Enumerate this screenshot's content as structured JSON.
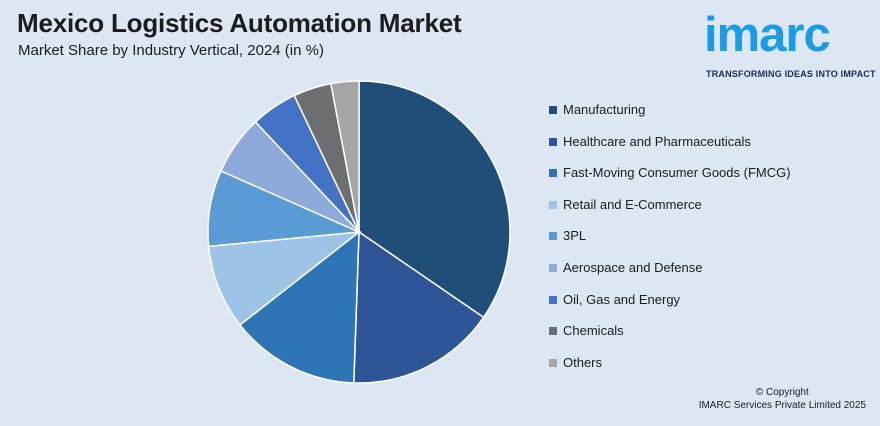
{
  "header": {
    "title": "Mexico Logistics Automation Market",
    "subtitle": "Market Share by Industry Vertical, 2024 (in %)"
  },
  "logo": {
    "word": "imarc",
    "tagline": "TRANSFORMING IDEAS INTO IMPACT",
    "color": "#1a9be8"
  },
  "chart_data": {
    "type": "pie",
    "title": "Mexico Logistics Automation Market",
    "subtitle": "Market Share by Industry Vertical, 2024 (in %)",
    "legend_position": "right",
    "categories": [
      "Manufacturing",
      "Healthcare and Pharmaceuticals",
      "Fast-Moving Consumer Goods (FMCG)",
      "Retail and E-Commerce",
      "3PL",
      "Aerospace and Defense",
      "Oil, Gas and Energy",
      "Chemicals",
      "Others"
    ],
    "values": [
      34.8,
      16.1,
      14.0,
      9.1,
      8.2,
      6.4,
      5.0,
      4.1,
      3.0
    ],
    "colors": [
      "#1f4e79",
      "#2e5597",
      "#2e75b6",
      "#9dc3e6",
      "#5b9bd5",
      "#8eaadb",
      "#4472c4",
      "#6d6e71",
      "#a5a5a5"
    ]
  },
  "footer": {
    "copyright_line1": "© Copyright",
    "copyright_line2": "IMARC Services Private Limited 2025"
  }
}
